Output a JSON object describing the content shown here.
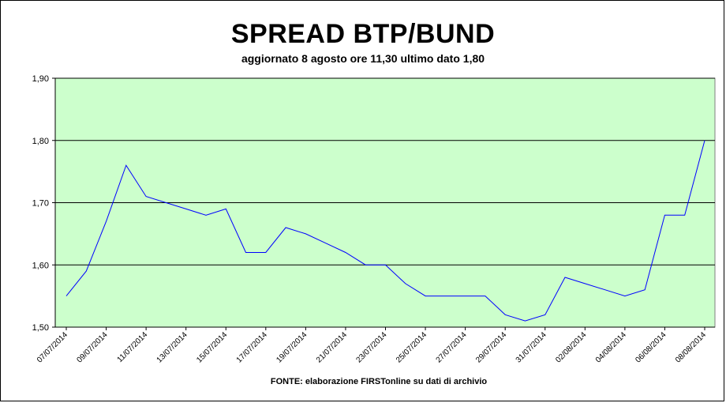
{
  "chart_data": {
    "type": "line",
    "title": "SPREAD BTP/BUND",
    "subtitle": "aggiornato 8 agosto ore 11,30 ultimo dato 1,80",
    "source": "FONTE: elaborazione FIRSTonline su dati di archivio",
    "ylim": [
      1.5,
      1.9
    ],
    "yticks": [
      "1,50",
      "1,60",
      "1,70",
      "1,80",
      "1,90"
    ],
    "ytick_values": [
      1.5,
      1.6,
      1.7,
      1.8,
      1.9
    ],
    "xtick_labels": [
      "07/07/2014",
      "09/07/2014",
      "11/07/2014",
      "13/07/2014",
      "15/07/2014",
      "17/07/2014",
      "19/07/2014",
      "21/07/2014",
      "23/07/2014",
      "25/07/2014",
      "27/07/2014",
      "29/07/2014",
      "31/07/2014",
      "02/08/2014",
      "04/08/2014",
      "06/08/2014",
      "08/08/2014"
    ],
    "grid": "horizontal",
    "colors": {
      "plot_background": "#ccffcc",
      "line": "#0000ff",
      "grid": "#000000"
    },
    "series": [
      {
        "x": [
          "07/07/2014",
          "08/07/2014",
          "09/07/2014",
          "10/07/2014",
          "11/07/2014",
          "12/07/2014",
          "13/07/2014",
          "14/07/2014",
          "15/07/2014",
          "16/07/2014",
          "17/07/2014",
          "18/07/2014",
          "19/07/2014",
          "20/07/2014",
          "21/07/2014",
          "22/07/2014",
          "23/07/2014",
          "24/07/2014",
          "25/07/2014",
          "26/07/2014",
          "27/07/2014",
          "28/07/2014",
          "29/07/2014",
          "30/07/2014",
          "31/07/2014",
          "01/08/2014",
          "02/08/2014",
          "03/08/2014",
          "04/08/2014",
          "05/08/2014",
          "06/08/2014",
          "07/08/2014",
          "08/08/2014"
        ],
        "values": [
          1.55,
          1.59,
          1.67,
          1.76,
          1.71,
          1.7,
          1.69,
          1.68,
          1.69,
          1.62,
          1.62,
          1.66,
          1.65,
          1.635,
          1.62,
          1.6,
          1.6,
          1.57,
          1.55,
          1.55,
          1.55,
          1.55,
          1.52,
          1.51,
          1.52,
          1.58,
          1.57,
          1.56,
          1.55,
          1.56,
          1.68,
          1.68,
          1.8
        ]
      }
    ]
  }
}
